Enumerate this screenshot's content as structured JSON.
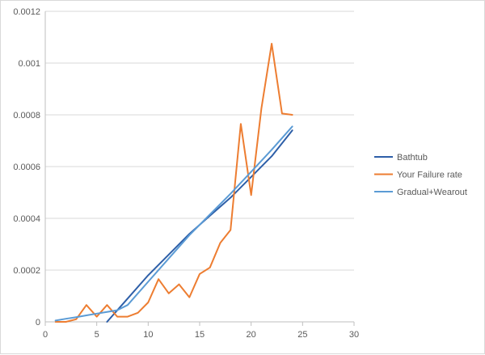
{
  "chart_data": {
    "type": "line",
    "title": "",
    "xlabel": "",
    "ylabel": "",
    "xlim": [
      0,
      30
    ],
    "ylim": [
      0,
      0.0012
    ],
    "x_ticks": [
      0,
      5,
      10,
      15,
      20,
      25,
      30
    ],
    "y_ticks": [
      0,
      0.0002,
      0.0004,
      0.0006,
      0.0008,
      0.001,
      0.0012
    ],
    "x_tick_labels": [
      "0",
      "5",
      "10",
      "15",
      "20",
      "25",
      "30"
    ],
    "y_tick_labels": [
      "0",
      "0.0002",
      "0.0004",
      "0.0006",
      "0.0008",
      "0.001",
      "0.0012"
    ],
    "grid": "horizontal",
    "legend_position": "right",
    "series": [
      {
        "name": "Bathtub",
        "color": "#2e5fa8",
        "x": [
          6,
          8,
          10,
          12,
          14,
          16,
          18,
          20,
          22,
          24
        ],
        "y": [
          0,
          9e-05,
          0.00018,
          0.00026,
          0.00034,
          0.00041,
          0.00048,
          0.00056,
          0.00064,
          0.00074
        ]
      },
      {
        "name": "Your Failure rate",
        "color": "#ed7d31",
        "x": [
          1,
          2,
          3,
          4,
          5,
          6,
          7,
          8,
          9,
          10,
          11,
          12,
          13,
          14,
          15,
          16,
          17,
          18,
          19,
          20,
          21,
          22,
          23,
          24
        ],
        "y": [
          0,
          0,
          1e-05,
          6.5e-05,
          2e-05,
          6.5e-05,
          2e-05,
          2e-05,
          3.5e-05,
          7.5e-05,
          0.000165,
          0.00011,
          0.000145,
          9.5e-05,
          0.000185,
          0.00021,
          0.000305,
          0.000355,
          0.000765,
          0.00049,
          0.000825,
          0.001075,
          0.000805,
          0.0008
        ]
      },
      {
        "name": "Gradual+Wearout",
        "color": "#5b9bd5",
        "x": [
          1,
          2,
          3,
          4,
          5,
          6,
          7,
          8,
          10,
          12,
          14,
          16,
          18,
          20,
          22,
          24
        ],
        "y": [
          5e-06,
          1.2e-05,
          1.8e-05,
          2.5e-05,
          3.2e-05,
          3.8e-05,
          4.5e-05,
          6.5e-05,
          0.000155,
          0.000245,
          0.000335,
          0.000415,
          0.000495,
          0.00058,
          0.000665,
          0.000755
        ]
      }
    ]
  }
}
